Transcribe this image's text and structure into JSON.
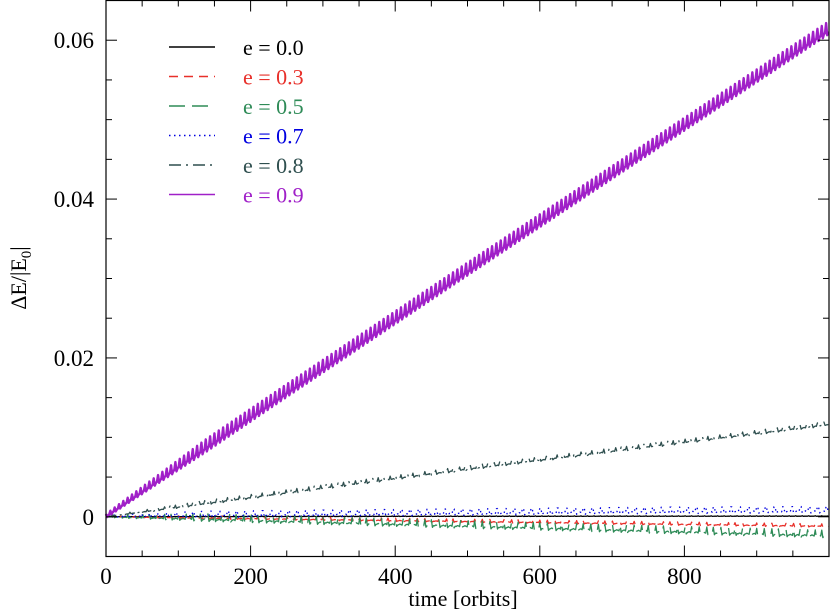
{
  "chart_data": {
    "type": "line",
    "title": "",
    "xlabel": "time [orbits]",
    "ylabel_main": "ΔE/|E",
    "ylabel_sub": "0",
    "ylabel_end": "|",
    "xlim": [
      0,
      1000
    ],
    "ylim": [
      -0.005,
      0.065
    ],
    "x_ticks": [
      0,
      200,
      400,
      600,
      800
    ],
    "x_tick_labels": [
      "0",
      "200",
      "400",
      "600",
      "800"
    ],
    "y_ticks": [
      0,
      0.02,
      0.04,
      0.06
    ],
    "y_tick_labels": [
      "0",
      "0.02",
      "0.04",
      "0.06"
    ],
    "x_minor_step": 50,
    "y_minor_step": 0.005,
    "legend_position": "top-left",
    "series": [
      {
        "name": "e = 0.0",
        "color": "#000000",
        "dash": "solid",
        "x": [
          0,
          250,
          500,
          750,
          1000
        ],
        "values": [
          0,
          4e-05,
          6e-05,
          7e-05,
          8e-05
        ],
        "osc_amp": 5e-05,
        "osc_period": 9
      },
      {
        "name": "e = 0.3",
        "color": "#e8302a",
        "dash": "dashed",
        "x": [
          0,
          250,
          500,
          750,
          1000
        ],
        "values": [
          0,
          -0.0003,
          -0.0006,
          -0.0009,
          -0.0012
        ],
        "osc_amp": 0.0003,
        "osc_period": 10
      },
      {
        "name": "e = 0.5",
        "color": "#2e8b57",
        "dash": "long-dashed",
        "x": [
          0,
          250,
          500,
          750,
          1000
        ],
        "values": [
          0,
          -0.0006,
          -0.0012,
          -0.0018,
          -0.0024
        ],
        "osc_amp": 0.0007,
        "osc_period": 10
      },
      {
        "name": "e = 0.7",
        "color": "#0000e0",
        "dash": "dotted",
        "x": [
          0,
          250,
          500,
          750,
          1000
        ],
        "values": [
          0,
          0.0002,
          0.0004,
          0.0006,
          0.0007
        ],
        "osc_amp": 0.0006,
        "osc_period": 12
      },
      {
        "name": "e = 0.8",
        "color": "#2f4f4f",
        "dash": "dash-dot",
        "x": [
          0,
          250,
          500,
          750,
          1000
        ],
        "values": [
          0,
          0.003,
          0.006,
          0.0088,
          0.0116
        ],
        "osc_amp": 0.0004,
        "osc_period": 8
      },
      {
        "name": "e = 0.9",
        "color": "#a020c8",
        "dash": "solid",
        "x": [
          0,
          250,
          500,
          750,
          1000
        ],
        "values": [
          0,
          0.0155,
          0.0308,
          0.046,
          0.0612
        ],
        "osc_amp": 0.0012,
        "osc_period": 6
      }
    ]
  }
}
